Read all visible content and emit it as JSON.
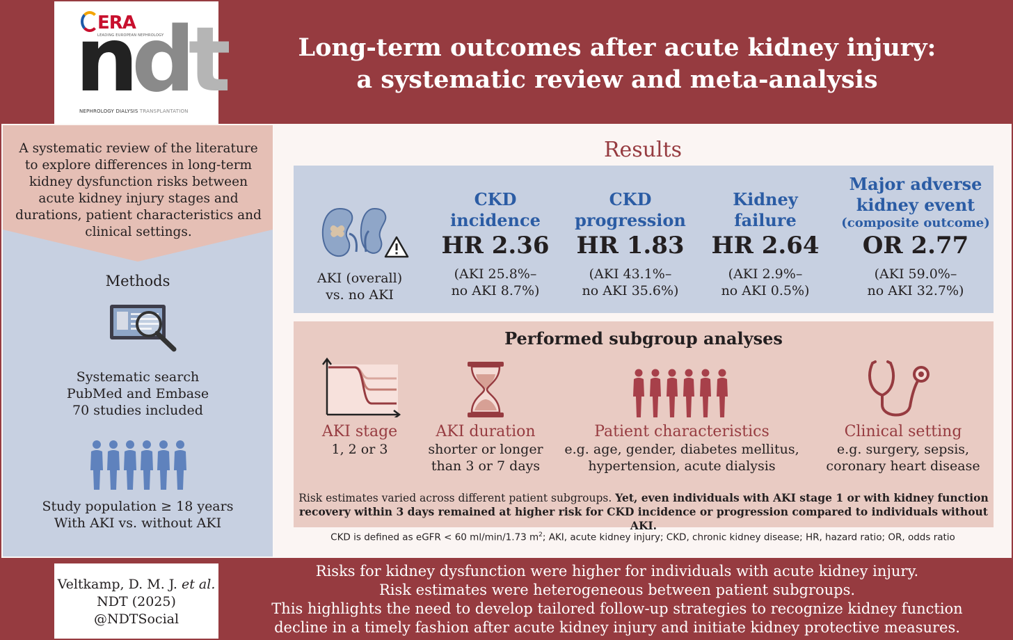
{
  "header": {
    "title_line1": "Long-term outcomes after acute kidney injury:",
    "title_line2": "a systematic review and meta-analysis",
    "logo_era": "ERA",
    "logo_era_sub": "LEADING EUROPEAN NEPHROLOGY",
    "logo_ndt_n": "n",
    "logo_ndt_d": "d",
    "logo_ndt_t": "t",
    "logo_sub_a": "NEPHROLOGY DIALYSIS ",
    "logo_sub_b": "TRANSPLANTATION"
  },
  "left": {
    "intro": "A systematic review of the literature to explore differences in long-term kidney dysfunction risks between acute kidney injury stages and durations, patient characteristics and clinical settings.",
    "methods_heading": "Methods",
    "search_lines": [
      "Systematic search",
      "PubMed and Embase",
      "70 studies included"
    ],
    "population_lines": [
      "Study population ≥ 18 years",
      "With AKI vs. without AKI"
    ]
  },
  "results": {
    "heading": "Results",
    "comparison_lines": [
      "AKI (overall)",
      "vs. no AKI"
    ],
    "outcomes": [
      {
        "title_lines": [
          "CKD",
          "incidence"
        ],
        "subtitle": "",
        "value": "HR 2.36",
        "detail_lines": [
          "(AKI 25.8%–",
          "no AKI 8.7%)"
        ]
      },
      {
        "title_lines": [
          "CKD",
          "progression"
        ],
        "subtitle": "",
        "value": "HR 1.83",
        "detail_lines": [
          "(AKI 43.1%–",
          "no AKI 35.6%)"
        ]
      },
      {
        "title_lines": [
          "Kidney",
          "failure"
        ],
        "subtitle": "",
        "value": "HR 2.64",
        "detail_lines": [
          "(AKI 2.9%–",
          "no AKI 0.5%)"
        ]
      },
      {
        "title_lines": [
          "Major adverse",
          "kidney event"
        ],
        "subtitle": "(composite outcome)",
        "value": "OR 2.77",
        "detail_lines": [
          "(AKI 59.0%–",
          "no AKI 32.7%)"
        ]
      }
    ]
  },
  "subgroups": {
    "heading": "Performed subgroup analyses",
    "items": [
      {
        "title": "AKI stage",
        "lines": [
          "1, 2 or 3"
        ]
      },
      {
        "title": "AKI duration",
        "lines": [
          "shorter or longer",
          "than 3 or 7 days"
        ]
      },
      {
        "title": "Patient characteristics",
        "lines": [
          "e.g. age, gender, diabetes mellitus,",
          "hypertension, acute dialysis"
        ]
      },
      {
        "title": "Clinical setting",
        "lines": [
          "e.g. surgery, sepsis,",
          "coronary heart disease"
        ]
      }
    ],
    "note_plain": "Risk estimates varied across different patient subgroups. ",
    "note_bold_1": "Yet, even individuals with AKI stage 1 or with kidney function",
    "note_bold_2": "recovery within 3 days remained at higher risk for CKD incidence or progression compared to individuals without AKI."
  },
  "footnote_a": "CKD is defined as eGFR < 60 ml/min/1.73 m",
  "footnote_sup": "2",
  "footnote_b": "; AKI, acute kidney injury; CKD, chronic kidney disease; HR, hazard ratio; OR, odds ratio",
  "footer": {
    "cite_author": "Veltkamp, D. M. J. ",
    "cite_etal": "et al.",
    "cite_journal": "NDT (2025)",
    "cite_handle": "@NDTSocial",
    "conclusion_lines": [
      "Risks for kidney dysfunction were higher for individuals with acute kidney injury.",
      "Risk estimates were heterogeneous between patient subgroups.",
      "This highlights the need to develop tailored follow-up strategies to recognize kidney function",
      "decline in a timely fashion after acute kidney injury and initiate kidney protective measures."
    ]
  },
  "colors": {
    "brand_red": "#963b40",
    "accent_blue": "#2b5ca4",
    "panel_blue": "#c7d0e1",
    "panel_pink": "#e9cbc3"
  },
  "icons": [
    "search-document-icon",
    "kidney-icon",
    "warning-icon",
    "people-icon",
    "graph-icon",
    "hourglass-icon",
    "stethoscope-icon"
  ]
}
